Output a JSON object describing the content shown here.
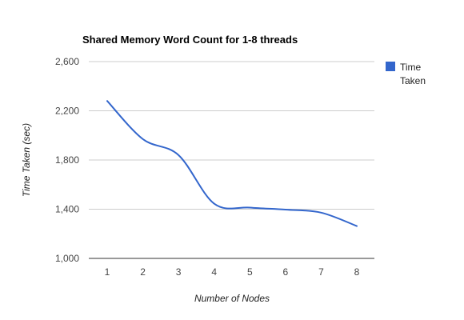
{
  "chart_data": {
    "type": "line",
    "title": "Shared Memory Word Count for 1-8 threads",
    "xlabel": "Number of Nodes",
    "ylabel": "Time Taken (sec)",
    "categories": [
      "1",
      "2",
      "3",
      "4",
      "5",
      "6",
      "7",
      "8"
    ],
    "series": [
      {
        "name": "Time Taken",
        "values": [
          2280,
          1970,
          1840,
          1445,
          1413,
          1397,
          1372,
          1263
        ],
        "color": "#3366cc",
        "legend_lines": [
          "Time",
          "Taken"
        ]
      }
    ],
    "y_ticks": [
      "2,600",
      "2,200",
      "1,800",
      "1,400",
      "1,000"
    ],
    "ylim": [
      1000,
      2600
    ],
    "grid": true,
    "curve": "smooth",
    "legend_position": "right"
  }
}
